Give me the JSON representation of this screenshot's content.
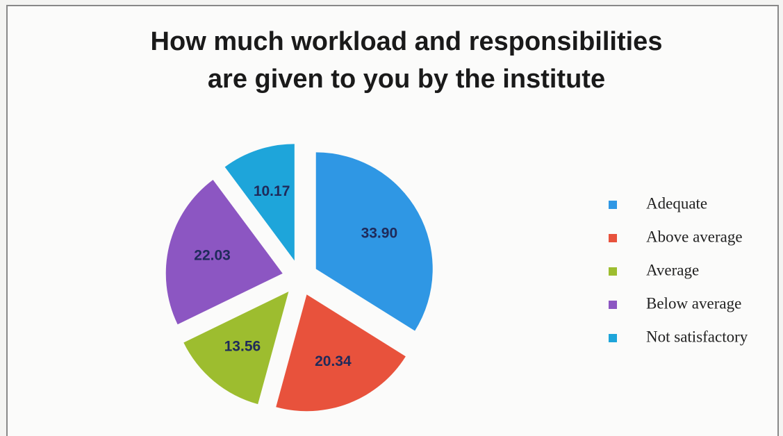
{
  "chart_data": {
    "type": "pie",
    "title": [
      "How much workload and responsibilities",
      "are given to you by the institute"
    ],
    "categories": [
      "Adequate",
      "Above average",
      "Average",
      "Below average",
      "Not satisfactory"
    ],
    "values": [
      33.9,
      20.34,
      13.56,
      22.03,
      10.17
    ],
    "value_labels": [
      "33.90",
      "20.34",
      "13.56",
      "22.03",
      "10.17"
    ],
    "colors": [
      "#2f97e4",
      "#e8523c",
      "#9dbd2f",
      "#8c56c2",
      "#1ea5da"
    ],
    "legend": "right"
  }
}
